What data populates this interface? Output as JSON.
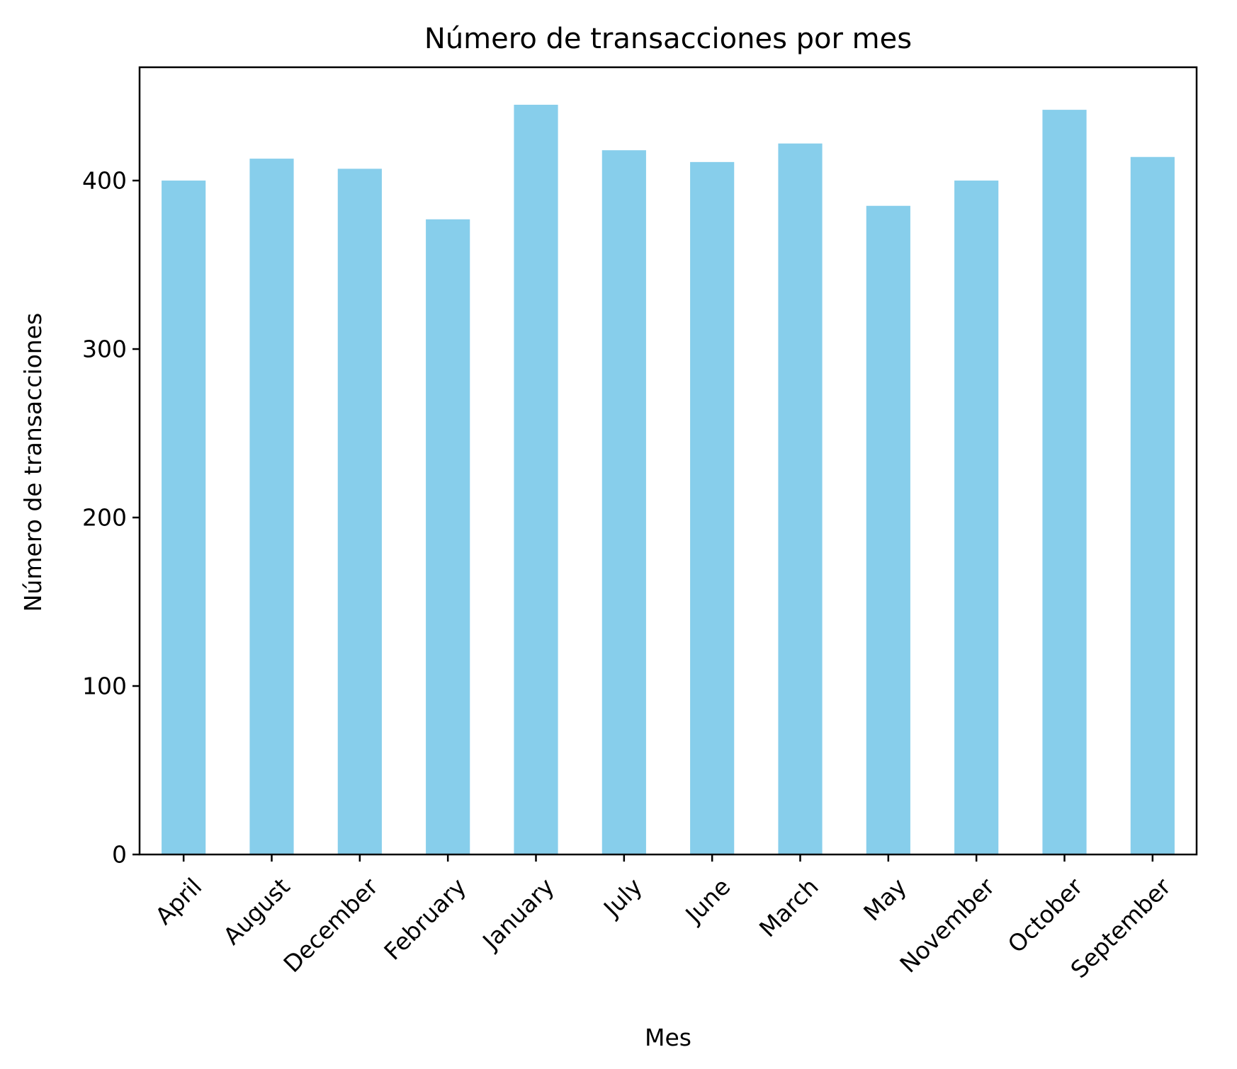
{
  "chart_data": {
    "type": "bar",
    "title": "Número de transacciones por mes",
    "xlabel": "Mes",
    "ylabel": "Número de transacciones",
    "categories": [
      "April",
      "August",
      "December",
      "February",
      "January",
      "July",
      "June",
      "March",
      "May",
      "November",
      "October",
      "September"
    ],
    "series": [
      {
        "name": "Número de transacciones",
        "values": [
          400,
          413,
          407,
          377,
          445,
          418,
          411,
          422,
          385,
          400,
          442,
          414
        ]
      }
    ],
    "ylim": [
      0,
      467.25
    ],
    "yticks": [
      0,
      100,
      200,
      300,
      400
    ],
    "ytick_labels": [
      "0",
      "100",
      "200",
      "300",
      "400"
    ],
    "grid": false,
    "legend": "none",
    "bar_color": "#87ceeb",
    "axis_color": "#000000"
  }
}
